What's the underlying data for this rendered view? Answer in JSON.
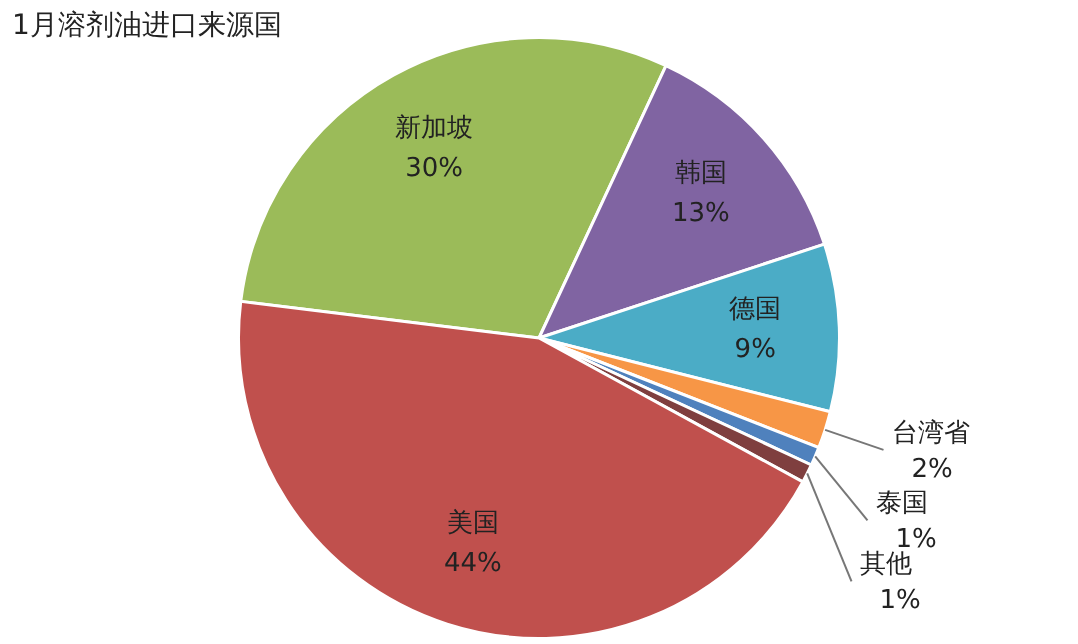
{
  "chart_data": {
    "type": "pie",
    "title": "1月溶剂油进口来源国",
    "categories": [
      "新加坡",
      "韩国",
      "德国",
      "台湾省",
      "泰国",
      "其他",
      "美国"
    ],
    "values": [
      30,
      13,
      9,
      2,
      1,
      1,
      44
    ],
    "value_labels": [
      "30%",
      "13%",
      "9%",
      "2%",
      "1%",
      "1%",
      "44%"
    ],
    "colors": [
      "#9bbb59",
      "#8064a2",
      "#4bacc6",
      "#f79646",
      "#4f81bd",
      "#7f3f3f",
      "#c0504d"
    ],
    "legend": false
  }
}
